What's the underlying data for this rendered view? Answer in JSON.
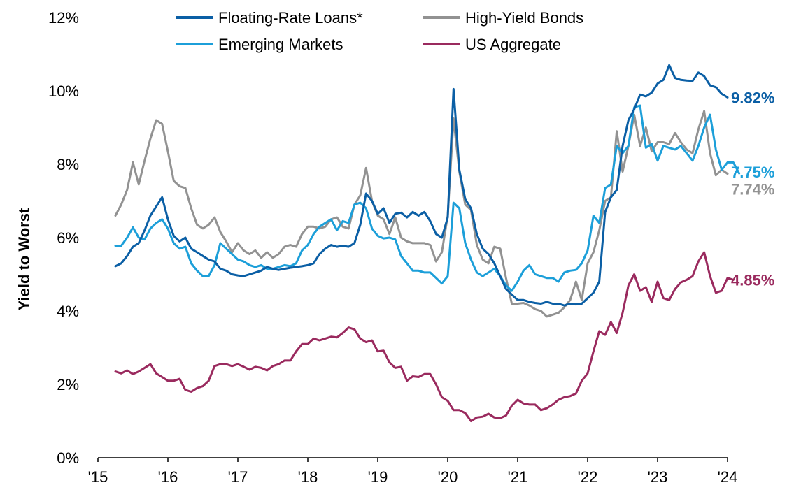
{
  "chart_data": {
    "type": "line",
    "title": "",
    "xlabel": "",
    "ylabel": "Yield to Worst",
    "ylim": [
      0,
      12
    ],
    "xlim": [
      2015,
      2024
    ],
    "y_tick_labels": [
      "0%",
      "2%",
      "4%",
      "6%",
      "8%",
      "10%",
      "12%"
    ],
    "x_tick_labels": [
      "'15",
      "'16",
      "'17",
      "'18",
      "'19",
      "'20",
      "'21",
      "'22",
      "'23",
      "'24"
    ],
    "grid": false,
    "legend_position": "top",
    "x_start": 2015.25,
    "x_step": 0.08333,
    "series": [
      {
        "name": "Floating-Rate Loans*",
        "color": "#0B5FA5",
        "end_label": "9.82%",
        "values": [
          5.22,
          5.3,
          5.5,
          5.75,
          5.85,
          6.2,
          6.6,
          6.85,
          7.1,
          6.5,
          6.05,
          5.9,
          6.0,
          5.7,
          5.6,
          5.5,
          5.4,
          5.35,
          5.15,
          5.1,
          5.0,
          4.97,
          4.95,
          5.0,
          5.05,
          5.1,
          5.2,
          5.15,
          5.12,
          5.15,
          5.18,
          5.2,
          5.22,
          5.25,
          5.3,
          5.55,
          5.7,
          5.8,
          5.75,
          5.78,
          5.75,
          5.85,
          6.35,
          7.2,
          7.0,
          6.65,
          6.8,
          6.4,
          6.65,
          6.68,
          6.55,
          6.7,
          6.6,
          6.7,
          6.45,
          6.1,
          6.0,
          6.55,
          10.05,
          7.85,
          7.05,
          6.8,
          6.1,
          5.7,
          5.55,
          5.3,
          4.95,
          4.6,
          4.45,
          4.3,
          4.3,
          4.25,
          4.22,
          4.2,
          4.25,
          4.2,
          4.2,
          4.15,
          4.2,
          4.18,
          4.2,
          4.35,
          4.5,
          4.8,
          6.7,
          7.1,
          7.3,
          8.5,
          9.2,
          9.5,
          9.9,
          9.85,
          9.95,
          10.2,
          10.3,
          10.7,
          10.35,
          10.3,
          10.28,
          10.27,
          10.5,
          10.4,
          10.15,
          10.1,
          9.92,
          9.82
        ]
      },
      {
        "name": "High-Yield Bonds",
        "color": "#929292",
        "end_label": "7.74%",
        "values": [
          6.6,
          6.9,
          7.3,
          8.05,
          7.45,
          8.1,
          8.7,
          9.2,
          9.1,
          8.35,
          7.55,
          7.4,
          7.35,
          6.8,
          6.35,
          6.25,
          6.35,
          6.55,
          6.15,
          5.9,
          5.6,
          5.85,
          5.65,
          5.55,
          5.65,
          5.45,
          5.6,
          5.45,
          5.55,
          5.75,
          5.8,
          5.75,
          6.1,
          6.3,
          6.3,
          6.25,
          6.3,
          6.5,
          6.55,
          6.3,
          6.25,
          6.9,
          7.15,
          7.9,
          7.0,
          6.6,
          6.5,
          6.1,
          6.55,
          6.0,
          5.9,
          5.85,
          5.85,
          5.85,
          5.8,
          5.35,
          5.6,
          6.6,
          9.25,
          7.8,
          6.9,
          6.75,
          5.8,
          5.4,
          5.3,
          5.75,
          5.7,
          4.9,
          4.2,
          4.2,
          4.22,
          4.15,
          4.05,
          4.0,
          3.85,
          3.9,
          3.95,
          4.1,
          4.3,
          4.8,
          4.3,
          5.3,
          5.6,
          6.2,
          7.0,
          7.1,
          8.9,
          7.8,
          8.5,
          9.35,
          8.5,
          9.0,
          8.35,
          8.6,
          8.6,
          8.55,
          8.85,
          8.6,
          8.4,
          8.3,
          8.95,
          9.45,
          8.3,
          7.7,
          7.85,
          7.74
        ]
      },
      {
        "name": "Emerging Markets",
        "color": "#1C9FD9",
        "end_label": "7.75%",
        "values": [
          5.78,
          5.78,
          6.0,
          6.28,
          6.0,
          5.95,
          6.25,
          6.4,
          6.5,
          6.25,
          5.85,
          5.7,
          5.75,
          5.3,
          5.1,
          4.95,
          4.95,
          5.25,
          5.85,
          5.7,
          5.55,
          5.4,
          5.35,
          5.25,
          5.2,
          5.25,
          5.15,
          5.15,
          5.2,
          5.25,
          5.22,
          5.3,
          5.65,
          5.8,
          6.1,
          6.3,
          6.4,
          6.5,
          6.2,
          6.45,
          6.4,
          6.9,
          6.95,
          6.8,
          6.25,
          6.05,
          5.98,
          6.0,
          5.95,
          5.5,
          5.3,
          5.1,
          5.1,
          5.05,
          5.05,
          4.9,
          4.75,
          4.95,
          6.95,
          6.8,
          5.85,
          5.4,
          5.05,
          4.95,
          5.05,
          5.15,
          4.95,
          4.7,
          4.55,
          4.8,
          5.1,
          5.25,
          5.0,
          4.95,
          4.9,
          4.9,
          4.8,
          5.05,
          5.1,
          5.12,
          5.3,
          5.65,
          6.6,
          6.4,
          7.35,
          7.45,
          8.5,
          8.3,
          8.5,
          9.55,
          9.6,
          8.45,
          8.55,
          8.1,
          8.5,
          8.45,
          8.4,
          8.5,
          8.3,
          8.1,
          8.5,
          9.0,
          9.35,
          8.4,
          7.85,
          8.05,
          8.05,
          7.75
        ]
      },
      {
        "name": "US Aggregate",
        "color": "#9A2A5E",
        "end_label": "4.85%",
        "values": [
          2.35,
          2.3,
          2.38,
          2.28,
          2.35,
          2.45,
          2.55,
          2.3,
          2.2,
          2.1,
          2.1,
          2.15,
          1.85,
          1.8,
          1.9,
          1.95,
          2.1,
          2.5,
          2.55,
          2.55,
          2.5,
          2.55,
          2.48,
          2.4,
          2.48,
          2.45,
          2.38,
          2.5,
          2.55,
          2.65,
          2.65,
          2.9,
          3.1,
          3.1,
          3.25,
          3.2,
          3.25,
          3.3,
          3.28,
          3.4,
          3.55,
          3.5,
          3.25,
          3.15,
          3.2,
          2.9,
          2.92,
          2.6,
          2.45,
          2.48,
          2.1,
          2.22,
          2.2,
          2.28,
          2.28,
          2.0,
          1.65,
          1.55,
          1.3,
          1.3,
          1.22,
          1.0,
          1.1,
          1.12,
          1.2,
          1.1,
          1.08,
          1.15,
          1.42,
          1.58,
          1.48,
          1.45,
          1.45,
          1.3,
          1.35,
          1.45,
          1.58,
          1.65,
          1.68,
          1.75,
          2.1,
          2.3,
          2.9,
          3.45,
          3.35,
          3.7,
          3.4,
          3.95,
          4.7,
          5.0,
          4.55,
          4.65,
          4.25,
          4.8,
          4.35,
          4.3,
          4.6,
          4.78,
          4.85,
          4.95,
          5.35,
          5.6,
          4.95,
          4.5,
          4.55,
          4.9,
          4.85
        ]
      }
    ]
  }
}
